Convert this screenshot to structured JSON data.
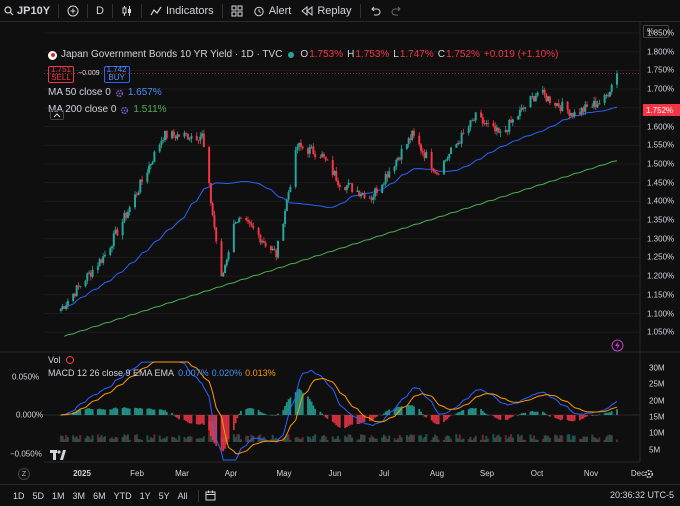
{
  "toolbar": {
    "symbol": "JP10Y",
    "interval": "D",
    "indicators": "Indicators",
    "alert": "Alert",
    "replay": "Replay"
  },
  "legend": {
    "title": "Japan Government Bonds 10 YR Yield · 1D · TVC",
    "ohlc": [
      {
        "k": "O",
        "v": "1.753%"
      },
      {
        "k": "H",
        "v": "1.753%"
      },
      {
        "k": "L",
        "v": "1.747%"
      },
      {
        "k": "C",
        "v": "1.752%"
      }
    ],
    "change": "+0.019 (+1.10%)",
    "sell_price": "1.751",
    "sell_label": "SELL",
    "spread": "−0.009",
    "buy_price": "1.742",
    "buy_label": "BUY",
    "ma50_name": "MA 50 close 0",
    "ma50_value": "1.657%",
    "ma200_name": "MA 200 close 0",
    "ma200_value": "1.511%"
  },
  "price_axis": {
    "scale_button": "%",
    "labels": [
      "1.850%",
      "1.800%",
      "1.750%",
      "1.700%",
      "1.650%",
      "1.600%",
      "1.550%",
      "1.500%",
      "1.450%",
      "1.400%",
      "1.350%",
      "1.300%",
      "1.250%",
      "1.200%",
      "1.150%",
      "1.100%",
      "1.050%"
    ],
    "last_price": "1.752%"
  },
  "lower_pane": {
    "vol_label": "Vol",
    "macd_name": "MACD 12 26 close 9 EMA EMA",
    "macd_values": [
      "0.007%",
      "0.020%",
      "0.013%"
    ],
    "macd_axis": [
      "0.050%",
      "0.000%",
      "−0.050%"
    ],
    "vol_axis": [
      "30M",
      "25M",
      "20M",
      "15M",
      "10M",
      "5M"
    ]
  },
  "time_axis": {
    "labels": [
      "2025",
      "Feb",
      "Mar",
      "Apr",
      "May",
      "Jun",
      "Jul",
      "Aug",
      "Sep",
      "Oct",
      "Nov",
      "Dec"
    ]
  },
  "bottom_bar": {
    "ranges": [
      "1D",
      "5D",
      "1M",
      "3M",
      "6M",
      "YTD",
      "1Y",
      "5Y",
      "All"
    ],
    "clock": "20:36:32 UTC-5"
  },
  "colors": {
    "up": "#26a69a",
    "down": "#f23645",
    "ma50": "#2962ff",
    "ma200": "#4caf50",
    "macd_line": "#2962ff",
    "signal_line": "#ff9800"
  },
  "chart_data": {
    "type": "candlestick",
    "symbol": "JP10Y",
    "ylim": [
      1.05,
      1.85
    ],
    "key_points": [
      {
        "date": "2025-01-06",
        "close": 1.1
      },
      {
        "date": "2025-01-31",
        "close": 1.25
      },
      {
        "date": "2025-02-14",
        "close": 1.38
      },
      {
        "date": "2025-03-05",
        "close": 1.58
      },
      {
        "date": "2025-03-27",
        "close": 1.58
      },
      {
        "date": "2025-04-07",
        "close": 1.18
      },
      {
        "date": "2025-04-15",
        "close": 1.35
      },
      {
        "date": "2025-04-25",
        "close": 1.32
      },
      {
        "date": "2025-05-08",
        "close": 1.25
      },
      {
        "date": "2025-05-20",
        "close": 1.55
      },
      {
        "date": "2025-06-02",
        "close": 1.53
      },
      {
        "date": "2025-06-13",
        "close": 1.45
      },
      {
        "date": "2025-07-01",
        "close": 1.41
      },
      {
        "date": "2025-07-24",
        "close": 1.58
      },
      {
        "date": "2025-08-07",
        "close": 1.48
      },
      {
        "date": "2025-08-29",
        "close": 1.63
      },
      {
        "date": "2025-09-12",
        "close": 1.58
      },
      {
        "date": "2025-10-03",
        "close": 1.7
      },
      {
        "date": "2025-10-24",
        "close": 1.64
      },
      {
        "date": "2025-11-10",
        "close": 1.68
      },
      {
        "date": "2025-11-17",
        "close": 1.752
      }
    ],
    "last_price": 1.752
  }
}
